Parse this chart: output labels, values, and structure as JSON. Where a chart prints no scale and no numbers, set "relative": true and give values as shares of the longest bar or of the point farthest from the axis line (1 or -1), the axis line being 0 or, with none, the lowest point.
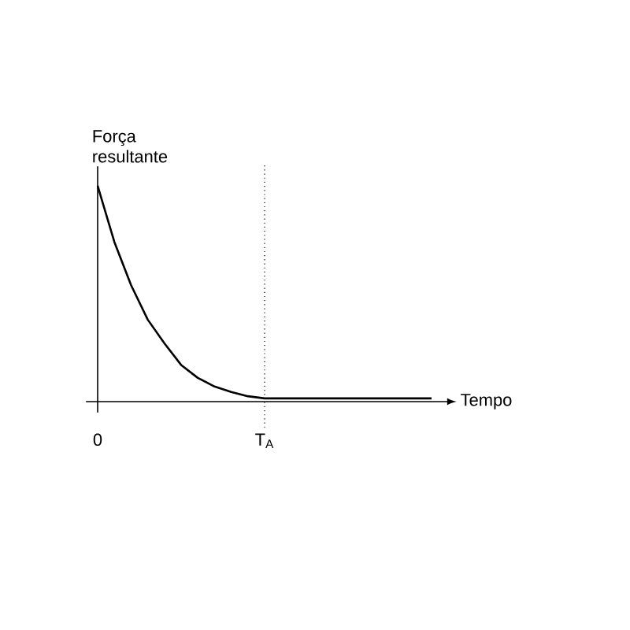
{
  "chart_data": {
    "type": "line",
    "relative": true,
    "xlabel": "Tempo",
    "ylabel": "Força resultante",
    "categories": [
      "0",
      null,
      null,
      null,
      null,
      null,
      null,
      null,
      null,
      null,
      "T$_{A}$",
      null,
      null,
      null,
      null,
      null,
      null,
      null,
      null,
      null,
      null
    ],
    "series": [
      {
        "color": "#000000",
        "values": [
          1,
          0.74,
          0.54,
          0.38,
          0.27,
          0.17,
          0.11,
          0.07,
          0.045,
          0.025,
          0.015,
          0.015,
          0.015,
          0.015,
          0.015,
          0.015,
          0.015,
          0.015,
          0.015,
          0.015,
          0.015
        ]
      }
    ],
    "ref_lines": [
      {
        "axis": "x",
        "value": "T$_{A}$",
        "line_style": "dotted",
        "color": "#000000"
      }
    ],
    "marker": "none",
    "line_style": "solid",
    "grid": false
  }
}
